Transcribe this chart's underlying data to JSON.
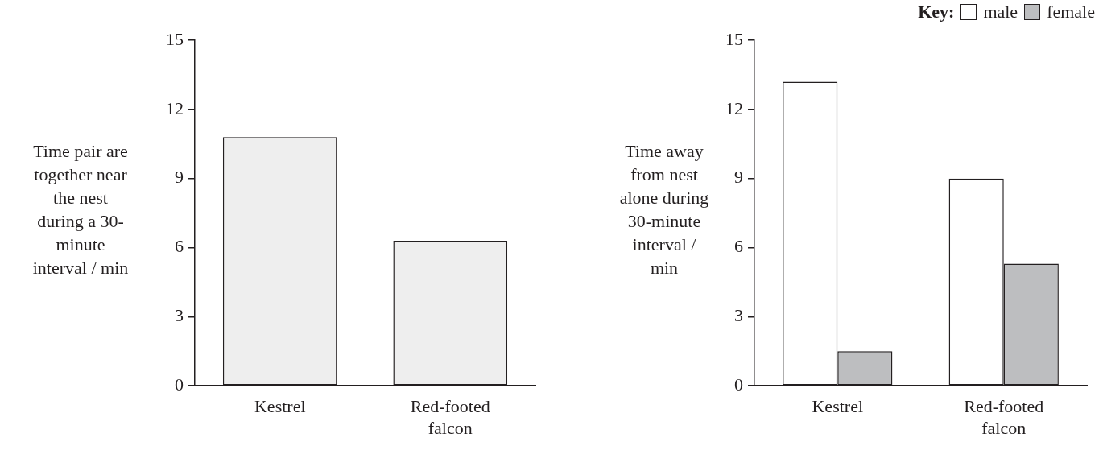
{
  "chart_data": [
    {
      "type": "bar",
      "ylabel": "Time pair are together near the nest during a 30-minute interval / min",
      "categories": [
        "Kestrel",
        "Red-footed falcon"
      ],
      "values": [
        10.8,
        6.3
      ],
      "color": "#eeeeee",
      "ylim": [
        0,
        15
      ],
      "yticks": [
        0,
        3,
        6,
        9,
        12,
        15
      ],
      "grid": false,
      "legend": false
    },
    {
      "type": "bar",
      "ylabel": "Time away from nest alone during 30-minute interval / min",
      "categories": [
        "Kestrel",
        "Red-footed falcon"
      ],
      "legend_title": "Key:",
      "legend": "top right",
      "series": [
        {
          "name": "male",
          "color": "#ffffff",
          "values": [
            13.2,
            9.0
          ]
        },
        {
          "name": "female",
          "color": "#bdbec0",
          "values": [
            1.5,
            5.3
          ]
        }
      ],
      "ylim": [
        0,
        15
      ],
      "yticks": [
        0,
        3,
        6,
        9,
        12,
        15
      ],
      "grid": false
    }
  ]
}
